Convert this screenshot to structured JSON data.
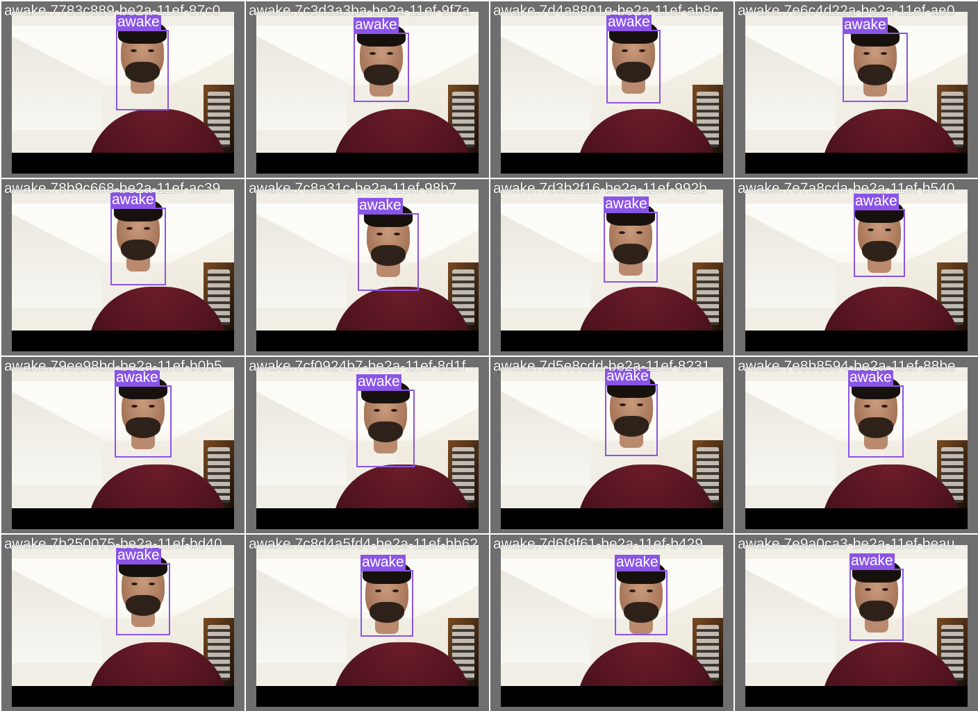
{
  "gallery": {
    "tiles": [
      {
        "caption": "awake.7783c889-be2a-11ef-87c0",
        "label": "awake"
      },
      {
        "caption": "awake.7c3d3a3ba-be2a-11ef-9f7a",
        "label": "awake"
      },
      {
        "caption": "awake.7d4a8801e-be2a-11ef-ab8c",
        "label": "awake"
      },
      {
        "caption": "awake.7e6c4d22a-be2a-11ef-ae0",
        "label": "awake"
      },
      {
        "caption": "awake.78b9c668-be2a-11ef-ac39",
        "label": "awake"
      },
      {
        "caption": "awake.7c8a31c-be2a-11ef-98b7",
        "label": "awake"
      },
      {
        "caption": "awake.7d3b2f16-be2a-11ef-992b",
        "label": "awake"
      },
      {
        "caption": "awake.7e7a8cda-be2a-11ef-b540",
        "label": "awake"
      },
      {
        "caption": "awake.79ee98bd-be2a-11ef-b0b5",
        "label": "awake"
      },
      {
        "caption": "awake.7cf0924b7-be2a-11ef-8d1f",
        "label": "awake"
      },
      {
        "caption": "awake.7d5e8cdd-be2a-11ef-8231",
        "label": "awake"
      },
      {
        "caption": "awake.7e8b8594-be2a-11ef-88be",
        "label": "awake"
      },
      {
        "caption": "awake.7b250075-be2a-11ef-bd40",
        "label": "awake"
      },
      {
        "caption": "awake.7c8d4a5fd4-be2a-11ef-bb62",
        "label": "awake"
      },
      {
        "caption": "awake.7d6f9f61-be2a-11ef-b429",
        "label": "awake"
      },
      {
        "caption": "awake.7e9a0ca3-be2a-11ef-beau",
        "label": "awake"
      }
    ]
  },
  "colors": {
    "tile_border": "#6e6e6e",
    "bbox": "#8a55e6",
    "label_text": "#ffffff",
    "shirt": "#5a1622",
    "letterbox": "#000000"
  }
}
